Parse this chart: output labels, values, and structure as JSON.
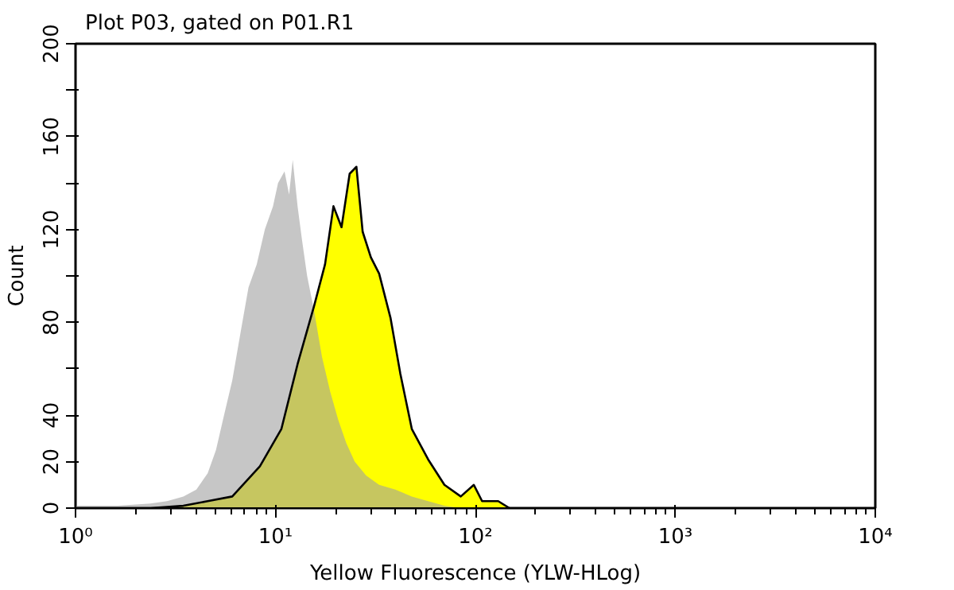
{
  "chart_data": {
    "type": "area",
    "title": "Plot P03, gated on P01.R1",
    "xlabel": "Yellow Fluorescence (YLW-HLog)",
    "ylabel": "Count",
    "log": "x",
    "xlim": [
      1,
      10000
    ],
    "xticks": [
      {
        "value": 1,
        "label": "10⁰"
      },
      {
        "value": 10,
        "label": "10¹"
      },
      {
        "value": 100,
        "label": "10²"
      },
      {
        "value": 1000,
        "label": "10³"
      },
      {
        "value": 10000,
        "label": "10⁴"
      }
    ],
    "ylim": [
      0,
      200
    ],
    "yticks": [
      0,
      20,
      40,
      {
        "value": 60,
        "label": null
      },
      80,
      {
        "value": 100,
        "label": null
      },
      120,
      {
        "value": 140,
        "label": null
      },
      160,
      {
        "value": 180,
        "label": null
      },
      200
    ],
    "grid": false,
    "series": [
      {
        "color": "#a0a0a0",
        "line_style": "none",
        "x": [
          1.0,
          1.63,
          2.37,
          2.87,
          3.46,
          4.02,
          4.58,
          5.04,
          5.53,
          6.08,
          6.67,
          7.33,
          8.06,
          8.85,
          9.72,
          10.3,
          11.1,
          11.7,
          12.2,
          12.9,
          13.6,
          14.4,
          15.6,
          17.1,
          18.8,
          20.6,
          22.6,
          24.9,
          28.4,
          33.0,
          39.8,
          48.1,
          58.0,
          70.0,
          84.5
        ],
        "values": [
          1,
          1,
          2,
          3,
          5,
          8,
          15,
          25,
          40,
          55,
          75,
          95,
          105,
          120,
          130,
          140,
          145,
          135,
          150,
          130,
          115,
          100,
          85,
          65,
          50,
          38,
          28,
          20,
          14,
          10,
          8,
          5,
          3,
          1,
          0
        ]
      },
      {
        "color": "#ffff00",
        "line_style": "solid",
        "x": [
          1.0,
          2.37,
          3.46,
          4.58,
          6.08,
          8.36,
          10.7,
          12.9,
          15.6,
          17.7,
          19.5,
          21.4,
          23.5,
          25.4,
          27.3,
          30.0,
          33.0,
          37.6,
          42.1,
          48.1,
          58.0,
          70.0,
          84.5,
          98.2,
          108,
          130,
          148
        ],
        "values": [
          0,
          0,
          1,
          3,
          5,
          18,
          34,
          62,
          87,
          105,
          130,
          121,
          144,
          147,
          119,
          108,
          101,
          82,
          58,
          34,
          21,
          10,
          5,
          10,
          3,
          3,
          0
        ]
      }
    ]
  }
}
